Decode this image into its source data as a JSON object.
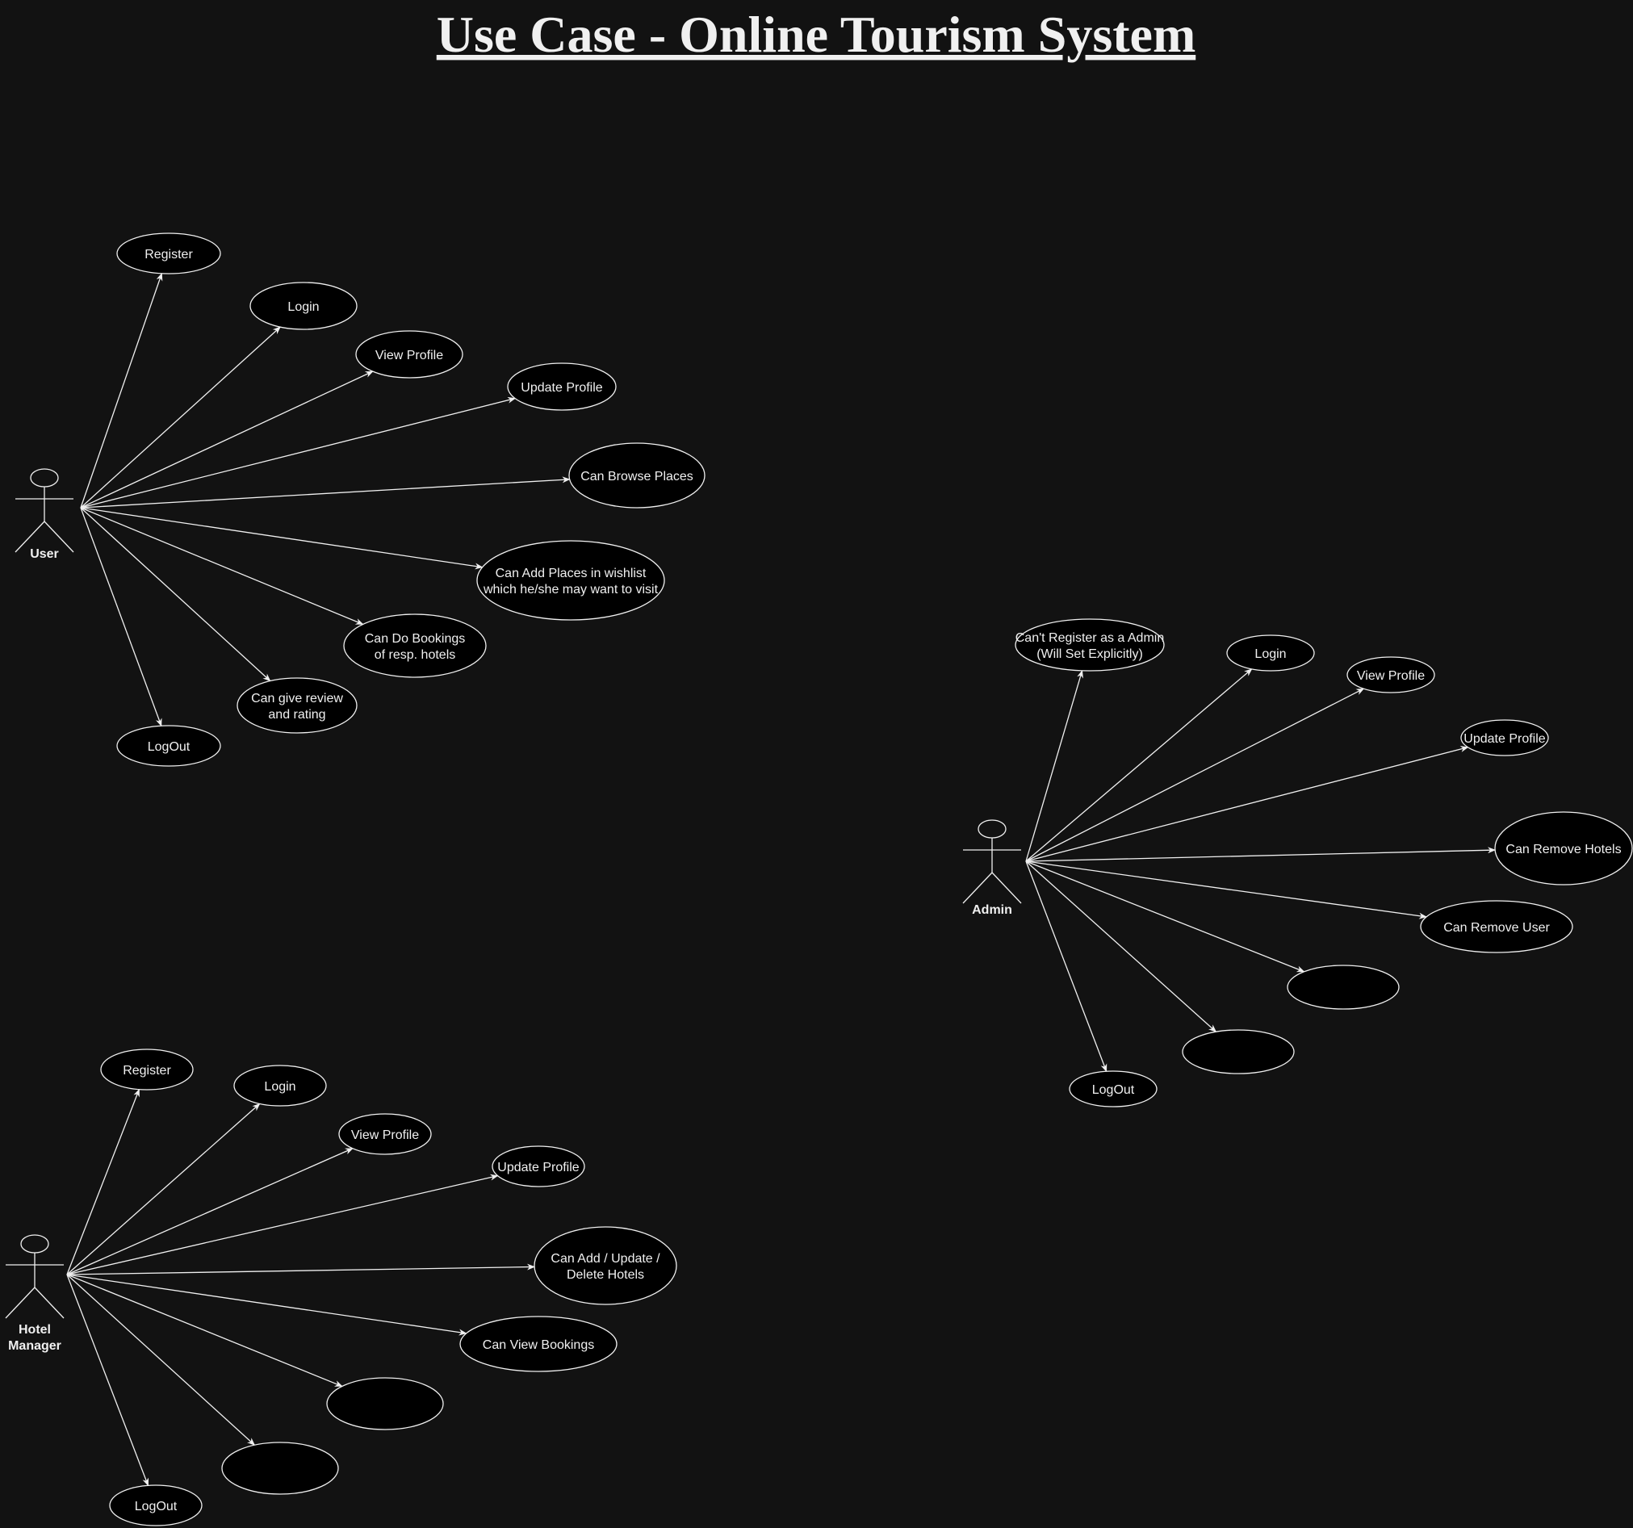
{
  "title": "Use Case - Online Tourism System",
  "colors": {
    "background": "#121212",
    "stroke": "#f0f0f0",
    "usecase_fill": "#000000",
    "text": "#f0f0f0"
  },
  "actors": [
    {
      "id": "user",
      "label_lines": [
        "User"
      ],
      "use_cases": [
        {
          "lines": [
            "Register"
          ]
        },
        {
          "lines": [
            "Login"
          ]
        },
        {
          "lines": [
            "View Profile"
          ]
        },
        {
          "lines": [
            "Update Profile"
          ]
        },
        {
          "lines": [
            "Can Browse Places"
          ]
        },
        {
          "lines": [
            "Can Add Places in wishlist",
            "which he/she may want to visit"
          ]
        },
        {
          "lines": [
            "Can Do Bookings",
            "of resp. hotels"
          ]
        },
        {
          "lines": [
            "Can give review",
            "and rating"
          ]
        },
        {
          "lines": [
            "LogOut"
          ]
        }
      ]
    },
    {
      "id": "hotel-manager",
      "label_lines": [
        "Hotel",
        "Manager"
      ],
      "use_cases": [
        {
          "lines": [
            "Register"
          ]
        },
        {
          "lines": [
            "Login"
          ]
        },
        {
          "lines": [
            "View Profile"
          ]
        },
        {
          "lines": [
            "Update Profile"
          ]
        },
        {
          "lines": [
            "Can Add / Update /",
            "Delete Hotels"
          ]
        },
        {
          "lines": [
            "Can View Bookings"
          ]
        },
        {
          "lines": []
        },
        {
          "lines": []
        },
        {
          "lines": [
            "LogOut"
          ]
        }
      ]
    },
    {
      "id": "admin",
      "label_lines": [
        "Admin"
      ],
      "use_cases": [
        {
          "lines": [
            "Can't Register as a Admin",
            "(Will Set Explicitly)"
          ]
        },
        {
          "lines": [
            "Login"
          ]
        },
        {
          "lines": [
            "View Profile"
          ]
        },
        {
          "lines": [
            "Update Profile"
          ]
        },
        {
          "lines": [
            "Can Remove Hotels"
          ]
        },
        {
          "lines": [
            "Can Remove User"
          ]
        },
        {
          "lines": []
        },
        {
          "lines": []
        },
        {
          "lines": [
            "LogOut"
          ]
        }
      ]
    }
  ]
}
